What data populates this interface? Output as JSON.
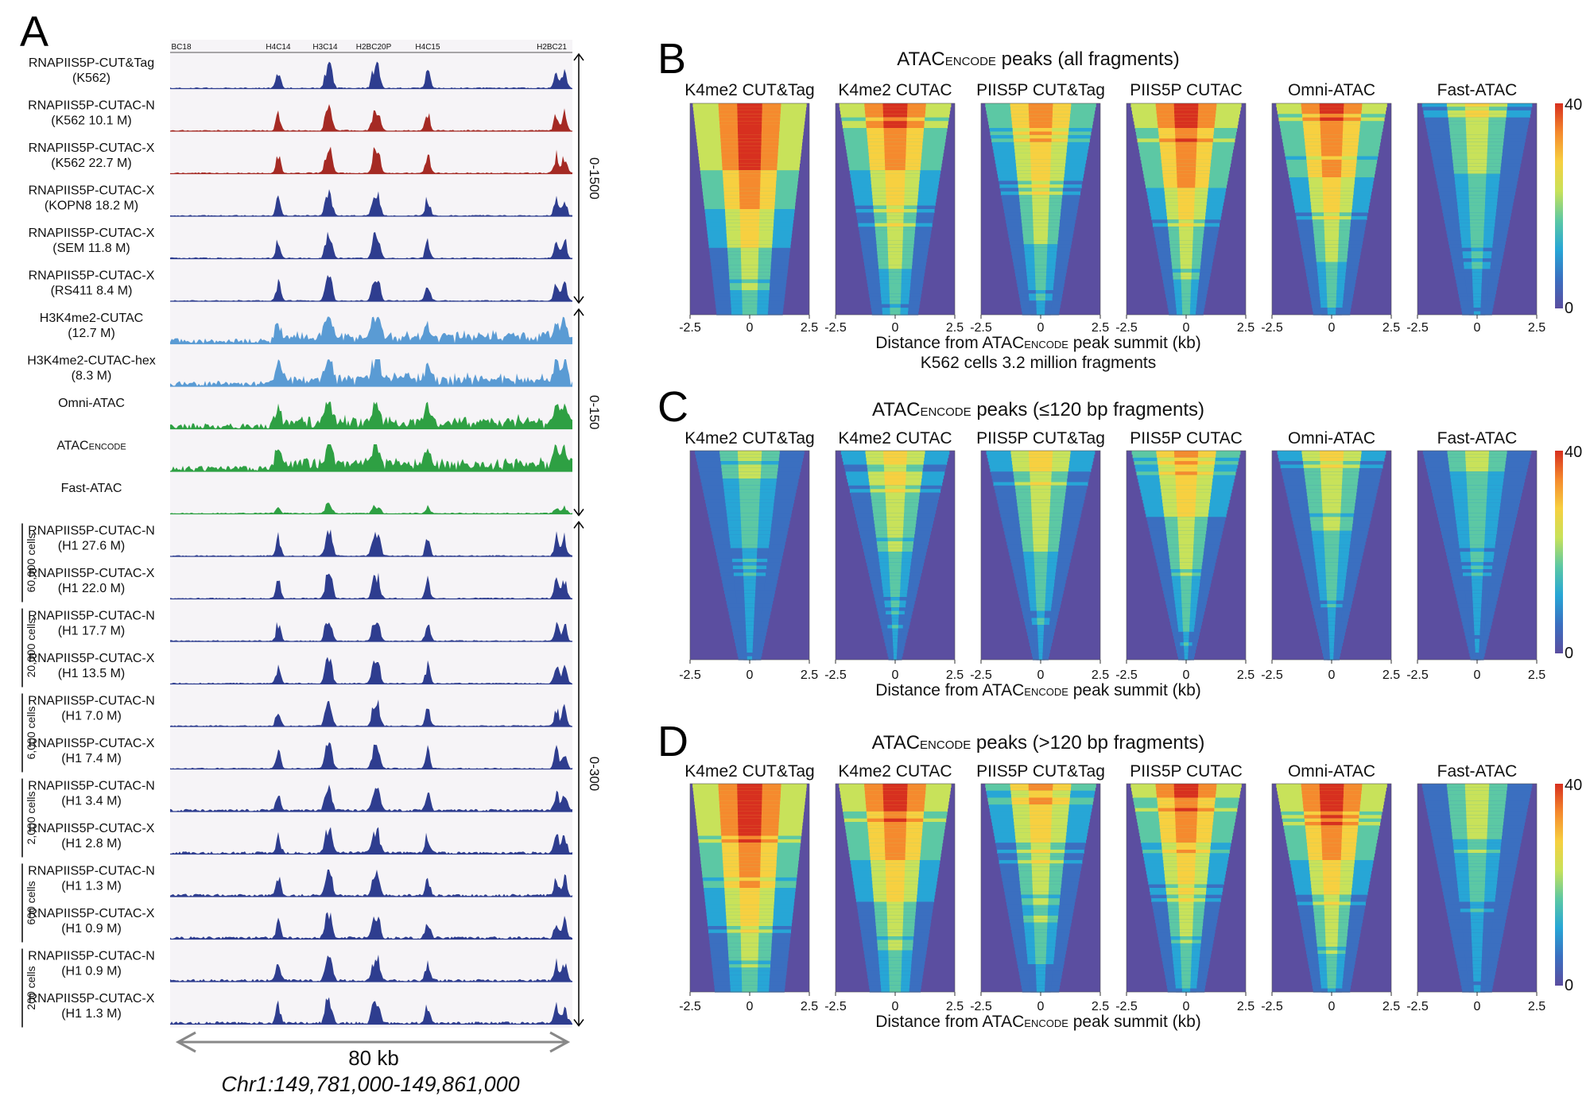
{
  "panelA": {
    "letter": "A",
    "genes": [
      "BC18",
      "H4C14",
      "H3C14",
      "H2BC20P",
      "H4C15",
      "H2BC21"
    ],
    "tracks": [
      {
        "line1": "RNAPIIS5P-CUT&Tag",
        "line2": "(K562)",
        "color": "#2e3d8f"
      },
      {
        "line1": "RNAPIIS5P-CUTAC-N",
        "line2": "(K562 10.1 M)",
        "color": "#a52a24"
      },
      {
        "line1": "RNAPIIS5P-CUTAC-X",
        "line2": "(K562 22.7 M)",
        "color": "#a52a24"
      },
      {
        "line1": "RNAPIIS5P-CUTAC-X",
        "line2": "(KOPN8 18.2 M)",
        "color": "#2e3d8f"
      },
      {
        "line1": "RNAPIIS5P-CUTAC-X",
        "line2": "(SEM 11.8 M)",
        "color": "#2e3d8f"
      },
      {
        "line1": "RNAPIIS5P-CUTAC-X",
        "line2": "(RS411 8.4 M)",
        "color": "#2e3d8f"
      },
      {
        "line1": "H3K4me2-CUTAC",
        "line2": "(12.7 M)",
        "color": "#5a9bd4"
      },
      {
        "line1": "H3K4me2-CUTAC-hex",
        "line2": "(8.3 M)",
        "color": "#5a9bd4"
      },
      {
        "line1": "Omni-ATAC",
        "line2": "",
        "color": "#2ea043"
      },
      {
        "line1": "ATAC",
        "sub": "ENCODE",
        "line2": "",
        "color": "#2ea043"
      },
      {
        "line1": "Fast-ATAC",
        "line2": "",
        "color": "#2ea043"
      },
      {
        "line1": "RNAPIIS5P-CUTAC-N",
        "line2": "(H1 27.6 M)",
        "color": "#2e3d8f"
      },
      {
        "line1": "RNAPIIS5P-CUTAC-X",
        "line2": "(H1 22.0 M)",
        "color": "#2e3d8f"
      },
      {
        "line1": "RNAPIIS5P-CUTAC-N",
        "line2": "(H1 17.7 M)",
        "color": "#2e3d8f"
      },
      {
        "line1": "RNAPIIS5P-CUTAC-X",
        "line2": "(H1 13.5 M)",
        "color": "#2e3d8f"
      },
      {
        "line1": "RNAPIIS5P-CUTAC-N",
        "line2": "(H1 7.0 M)",
        "color": "#2e3d8f"
      },
      {
        "line1": "RNAPIIS5P-CUTAC-X",
        "line2": "(H1 7.4 M)",
        "color": "#2e3d8f"
      },
      {
        "line1": "RNAPIIS5P-CUTAC-N",
        "line2": "(H1 3.4 M)",
        "color": "#2e3d8f"
      },
      {
        "line1": "RNAPIIS5P-CUTAC-X",
        "line2": "(H1 2.8 M)",
        "color": "#2e3d8f"
      },
      {
        "line1": "RNAPIIS5P-CUTAC-N",
        "line2": "(H1 1.3 M)",
        "color": "#2e3d8f"
      },
      {
        "line1": "RNAPIIS5P-CUTAC-X",
        "line2": "(H1 0.9 M)",
        "color": "#2e3d8f"
      },
      {
        "line1": "RNAPIIS5P-CUTAC-N",
        "line2": "(H1 0.9 M)",
        "color": "#2e3d8f"
      },
      {
        "line1": "RNAPIIS5P-CUTAC-X",
        "line2": "(H1 1.3 M)",
        "color": "#2e3d8f"
      }
    ],
    "scales": [
      "0-1500",
      "0-150",
      "0-300"
    ],
    "cell_groups": [
      "60,000 cells",
      "20,000 cells",
      "6,000 cells",
      "2,000 cells",
      "600 cells",
      "200 cells"
    ],
    "span_label": "80 kb",
    "coordinates": "Chr1:149,781,000-149,861,000"
  },
  "heatmaps": {
    "columns": [
      "K4me2 CUT&Tag",
      "K4me2 CUTAC",
      "PIIS5P CUT&Tag",
      "PIIS5P CUTAC",
      "Omni-ATAC",
      "Fast-ATAC"
    ],
    "ticks": [
      "-2.5",
      "0",
      "2.5"
    ],
    "colorbar": {
      "max": "40",
      "min": "0",
      "colors": [
        "#5b4ea0",
        "#3b6fc0",
        "#27a6d6",
        "#5cc8a4",
        "#c8e25a",
        "#f7d040",
        "#f58a2e",
        "#d7301f"
      ]
    },
    "xlabel_pre": "Distance from ATAC",
    "xlabel_sub": "ENCODE",
    "xlabel_post": " peak summit (kb)",
    "panels": [
      {
        "letter": "B",
        "title_pre": "ATAC",
        "title_sub": "ENCODE",
        "title_post": " peaks (all fragments)",
        "extra": "K562 cells 3.2 million fragments"
      },
      {
        "letter": "C",
        "title_pre": "ATAC",
        "title_sub": "ENCODE",
        "title_post": " peaks (≤120 bp fragments)",
        "extra": ""
      },
      {
        "letter": "D",
        "title_pre": "ATAC",
        "title_sub": "ENCODE",
        "title_post": " peaks (>120 bp fragments)",
        "extra": ""
      }
    ]
  }
}
